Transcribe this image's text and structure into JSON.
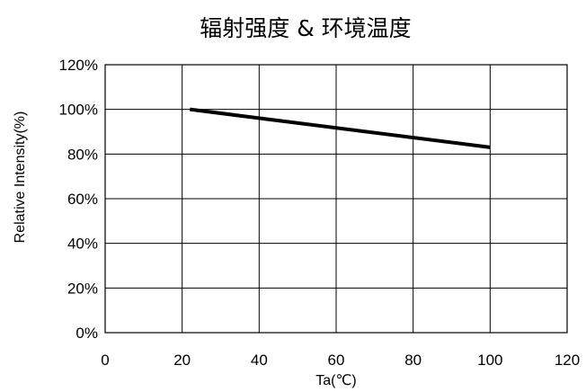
{
  "chart_data": {
    "type": "line",
    "title": "辐射强度 & 环境温度",
    "xlabel": "Ta(℃)",
    "ylabel": "Relative Intensity(%)",
    "xlim": [
      0,
      120
    ],
    "ylim": [
      0,
      120
    ],
    "x_ticks": [
      "0",
      "20",
      "40",
      "60",
      "80",
      "100",
      "120"
    ],
    "y_ticks": [
      "0%",
      "20%",
      "40%",
      "60%",
      "80%",
      "100%",
      "120%"
    ],
    "grid": true,
    "legend": "none",
    "series": [
      {
        "x": [
          22,
          100
        ],
        "y": [
          100,
          83
        ],
        "color": "#000000"
      }
    ]
  }
}
